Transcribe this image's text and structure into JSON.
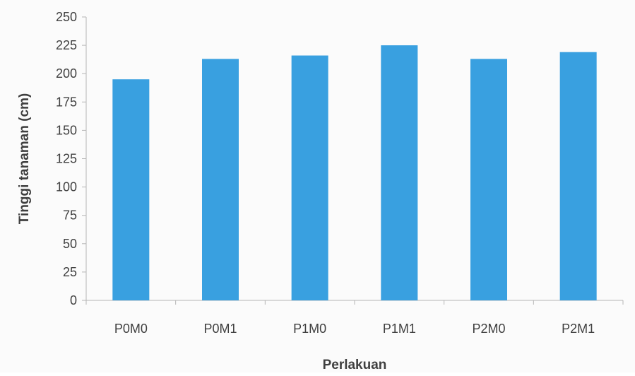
{
  "chart_data": {
    "type": "bar",
    "title": "",
    "xlabel": "Perlakuan",
    "ylabel": "Tinggi tanaman (cm)",
    "categories": [
      "P0M0",
      "P0M1",
      "P1M0",
      "P1M1",
      "P2M0",
      "P2M1"
    ],
    "values": [
      195,
      213,
      216,
      225,
      213,
      219
    ],
    "ylim": [
      0,
      250
    ],
    "yticks": [
      "0",
      "25",
      "50",
      "75",
      "100",
      "125",
      "150",
      "175",
      "200",
      "225",
      "250"
    ],
    "grid": false,
    "legend": "none",
    "colors": {
      "bar": "#39a0e0",
      "axis": "#b5b5b5",
      "text": "#3f3f3f"
    }
  }
}
